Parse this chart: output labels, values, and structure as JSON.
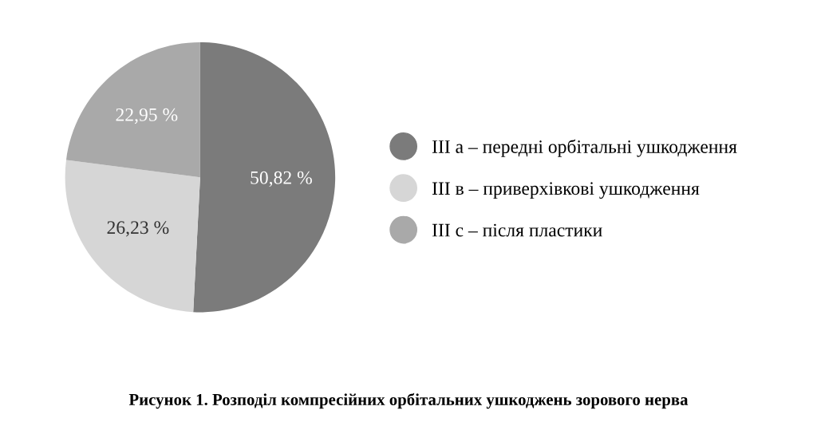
{
  "chart_data": {
    "type": "pie",
    "title": "Рисунок 1. Розподіл компресійних орбітальних ушкоджень зорового нерва",
    "categories": [
      "III а – передні орбітальні ушкодження",
      "III в – приверхівкові ушкодження",
      "III с – після пластики"
    ],
    "values": [
      50.82,
      26.23,
      22.95
    ],
    "colors": [
      "#7b7b7b",
      "#d6d6d6",
      "#a9a9a9"
    ],
    "value_labels": [
      "50,82 %",
      "26,23 %",
      "22,95 %"
    ],
    "legend": "right"
  }
}
